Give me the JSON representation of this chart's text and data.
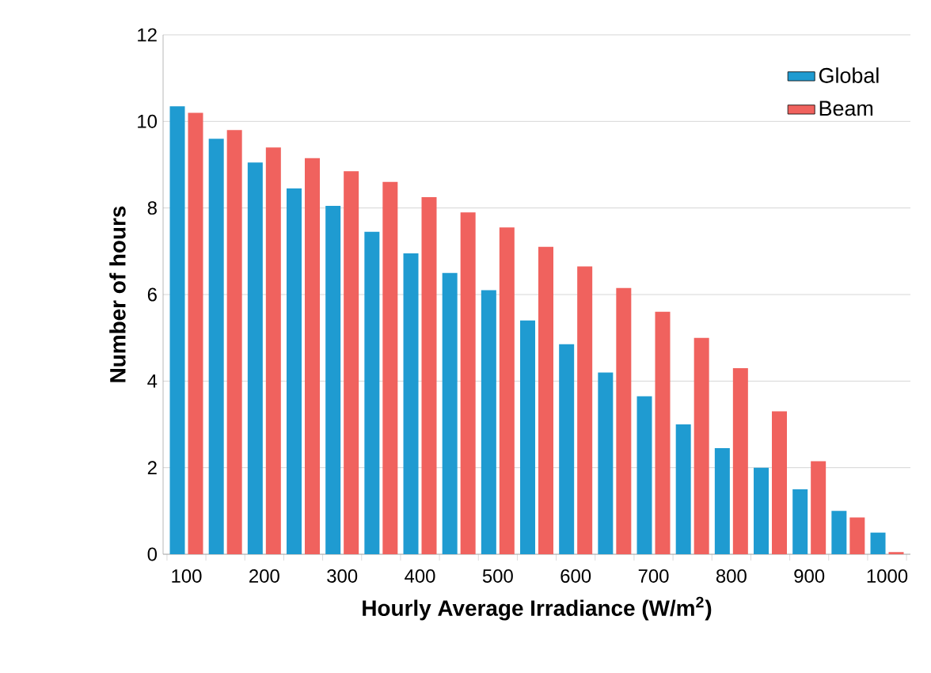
{
  "chart_data": {
    "type": "bar",
    "xlabel": "Hourly Average Irradiance (W/m$^{2}$)",
    "ylabel": "Number of hours",
    "categories": [
      "100",
      null,
      "200",
      null,
      "300",
      null,
      "400",
      null,
      "500",
      null,
      "600",
      null,
      "700",
      null,
      "800",
      null,
      "900",
      null,
      "1000"
    ],
    "series": [
      {
        "name": "Global",
        "color": "#1f9bd1",
        "values": [
          10.35,
          9.6,
          9.05,
          8.45,
          8.05,
          7.45,
          6.95,
          6.5,
          6.1,
          5.4,
          4.85,
          4.2,
          3.65,
          3.0,
          2.45,
          2.0,
          1.5,
          1.0,
          0.5
        ]
      },
      {
        "name": "Beam",
        "color": "#f0625e",
        "values": [
          10.2,
          9.8,
          9.4,
          9.15,
          8.85,
          8.6,
          8.25,
          7.9,
          7.55,
          7.1,
          6.65,
          6.15,
          5.6,
          5.0,
          4.3,
          3.3,
          2.15,
          0.85,
          0.05
        ]
      }
    ],
    "ylim": [
      0,
      12
    ],
    "yticks": [
      0,
      2,
      4,
      6,
      8,
      10,
      12
    ],
    "grid": "y",
    "legend": "top right"
  }
}
